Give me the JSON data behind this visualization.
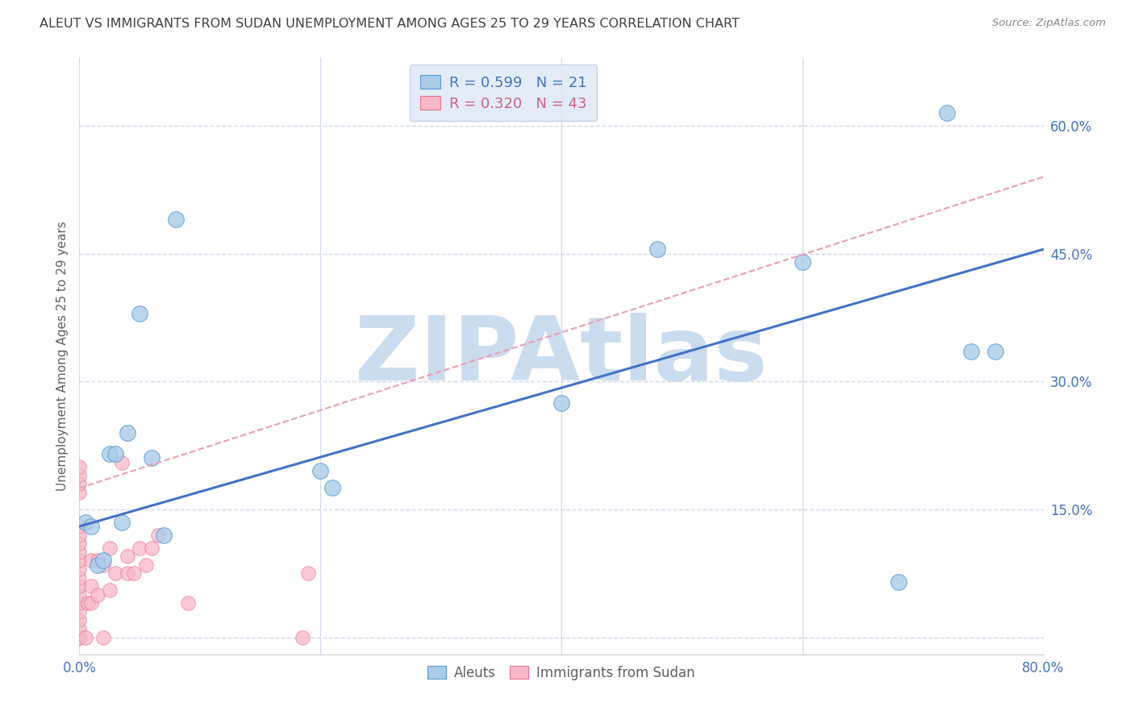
{
  "title": "ALEUT VS IMMIGRANTS FROM SUDAN UNEMPLOYMENT AMONG AGES 25 TO 29 YEARS CORRELATION CHART",
  "source": "Source: ZipAtlas.com",
  "ylabel": "Unemployment Among Ages 25 to 29 years",
  "xlim": [
    0.0,
    0.8
  ],
  "ylim": [
    -0.02,
    0.68
  ],
  "x_ticks": [
    0.0,
    0.2,
    0.4,
    0.6,
    0.8
  ],
  "x_tick_labels": [
    "0.0%",
    "",
    "",
    "",
    "80.0%"
  ],
  "y_ticks": [
    0.0,
    0.15,
    0.3,
    0.45,
    0.6
  ],
  "y_tick_labels": [
    "",
    "15.0%",
    "30.0%",
    "45.0%",
    "60.0%"
  ],
  "aleuts_R": 0.599,
  "aleuts_N": 21,
  "sudan_R": 0.32,
  "sudan_N": 43,
  "aleuts_color": "#aacce8",
  "sudan_color": "#f9b8c8",
  "aleuts_edge_color": "#5b9bd5",
  "sudan_edge_color": "#e87090",
  "aleuts_line_color": "#4472c4",
  "sudan_line_color": "#e8a0b4",
  "watermark": "ZIPAtlas",
  "watermark_color": "#ccdcef",
  "aleuts_x": [
    0.005,
    0.01,
    0.015,
    0.02,
    0.025,
    0.03,
    0.035,
    0.04,
    0.05,
    0.06,
    0.07,
    0.08,
    0.2,
    0.21,
    0.4,
    0.48,
    0.6,
    0.68,
    0.74,
    0.76,
    0.72
  ],
  "aleuts_y": [
    0.135,
    0.13,
    0.085,
    0.09,
    0.215,
    0.215,
    0.135,
    0.24,
    0.38,
    0.21,
    0.12,
    0.49,
    0.195,
    0.175,
    0.275,
    0.455,
    0.44,
    0.065,
    0.335,
    0.335,
    0.615
  ],
  "sudan_x": [
    0.0,
    0.0,
    0.0,
    0.0,
    0.0,
    0.0,
    0.0,
    0.0,
    0.0,
    0.0,
    0.0,
    0.0,
    0.0,
    0.0,
    0.0,
    0.0,
    0.0,
    0.0,
    0.0,
    0.0,
    0.005,
    0.007,
    0.01,
    0.01,
    0.01,
    0.015,
    0.015,
    0.02,
    0.02,
    0.025,
    0.025,
    0.03,
    0.035,
    0.04,
    0.04,
    0.045,
    0.05,
    0.055,
    0.06,
    0.065,
    0.09,
    0.185,
    0.19
  ],
  "sudan_y": [
    0.0,
    0.0,
    0.0,
    0.01,
    0.02,
    0.03,
    0.04,
    0.05,
    0.06,
    0.07,
    0.08,
    0.09,
    0.1,
    0.11,
    0.12,
    0.13,
    0.17,
    0.18,
    0.19,
    0.2,
    0.0,
    0.04,
    0.04,
    0.06,
    0.09,
    0.05,
    0.09,
    0.0,
    0.085,
    0.055,
    0.105,
    0.075,
    0.205,
    0.075,
    0.095,
    0.075,
    0.105,
    0.085,
    0.105,
    0.12,
    0.04,
    0.0,
    0.075
  ],
  "background_color": "#ffffff",
  "grid_color": "#d0d8ea",
  "tick_color": "#4472c4",
  "title_color": "#404040",
  "legend_box_color": "#dde8f4",
  "aleuts_line_start_y": 0.13,
  "aleuts_line_end_y": 0.455,
  "sudan_line_start_y": 0.175,
  "sudan_line_end_y": 0.54
}
